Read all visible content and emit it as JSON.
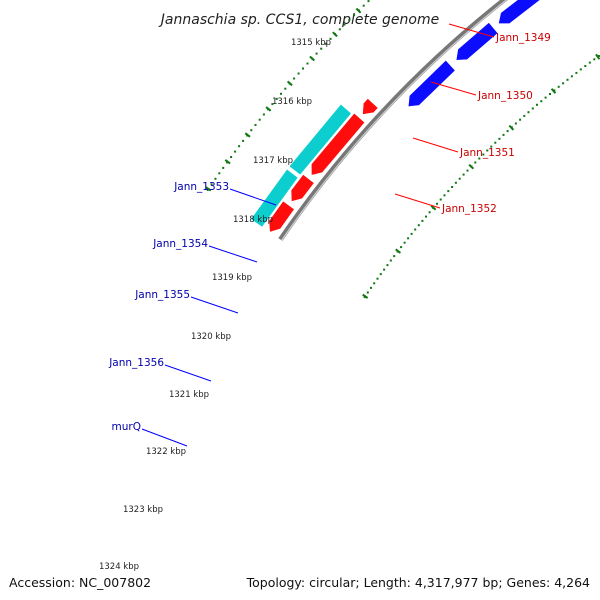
{
  "title": "Jannaschia sp. CCS1, complete genome",
  "accession": "Accession: NC_007802",
  "topology": "Topology: circular; Length: 4,317,977 bp; Genes: 4,264",
  "colors": {
    "forward": "#ff0000",
    "reverse": "#0000ff",
    "rna": "#00cccc",
    "other": "#bbbbbb",
    "orange": "#ff9900",
    "backbone": "#777777",
    "tick": "#117711",
    "forward_label": "#cc0000",
    "reverse_label": "#0000aa"
  },
  "ticks": [
    "1315 kbp",
    "1316 kbp",
    "1317 kbp",
    "1318 kbp",
    "1319 kbp",
    "1320 kbp",
    "1321 kbp",
    "1322 kbp",
    "1323 kbp",
    "1324 kbp"
  ],
  "forward_labels": [
    "Jann_1349",
    "Jann_1350",
    "Jann_1351",
    "Jann_1352"
  ],
  "reverse_labels": [
    "Jann_1353",
    "Jann_1354",
    "Jann_1355",
    "Jann_1356",
    "murQ"
  ]
}
